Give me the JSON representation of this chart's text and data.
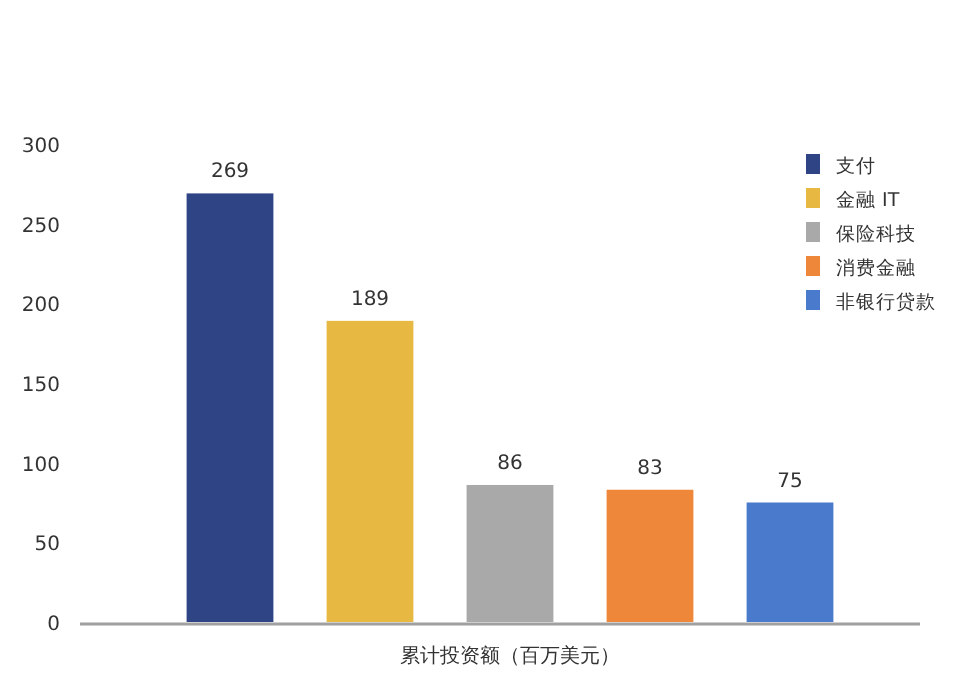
{
  "chart_data": {
    "type": "bar",
    "categories": [
      "累计投资额（百万美元）"
    ],
    "series": [
      {
        "name": "支付",
        "color": "#2e4485",
        "values": [
          269
        ]
      },
      {
        "name": "金融 IT",
        "color": "#e8b942",
        "values": [
          189
        ]
      },
      {
        "name": "保险科技",
        "color": "#a9a9a9",
        "values": [
          86
        ]
      },
      {
        "name": "消费金融",
        "color": "#ee873a",
        "values": [
          83
        ]
      },
      {
        "name": "非银行贷款",
        "color": "#4a7acb",
        "values": [
          75
        ]
      }
    ],
    "ylim": [
      0,
      300
    ],
    "yticks": [
      0,
      50,
      100,
      150,
      200,
      250,
      300
    ],
    "data_labels": true,
    "legend": "top right"
  }
}
